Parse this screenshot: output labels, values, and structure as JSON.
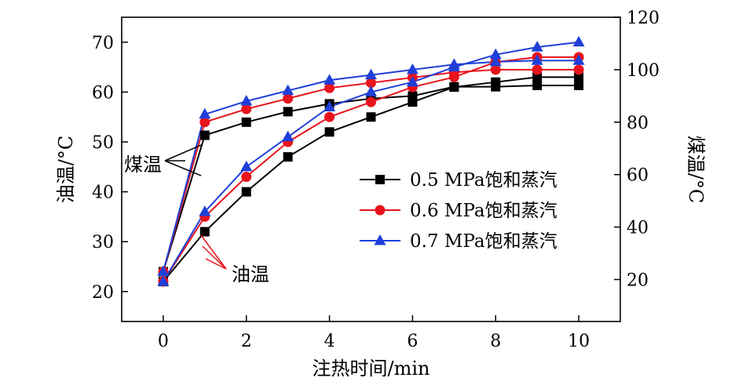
{
  "chart_data": {
    "type": "line",
    "xlabel": "注热时间/min",
    "ylabel_left": "油温/°C",
    "ylabel_right": "煤温/°C",
    "xlim": [
      -1,
      11
    ],
    "ylim_left": [
      14,
      75
    ],
    "ylim_right": [
      4,
      120
    ],
    "x_ticks": [
      0,
      2,
      4,
      6,
      8,
      10
    ],
    "y_left_ticks": [
      20,
      30,
      40,
      50,
      60,
      70
    ],
    "y_right_ticks": [
      20,
      40,
      60,
      80,
      100,
      120
    ],
    "legend_position": "right",
    "x": [
      0,
      1,
      2,
      3,
      4,
      5,
      6,
      7,
      8,
      9,
      10
    ],
    "series": [
      {
        "name": "0.5 MPa饱和蒸汽",
        "color": "#000000",
        "marker": "square",
        "oil_temp": [
          22,
          32,
          40,
          47,
          52,
          55,
          58,
          61,
          62,
          63,
          63
        ],
        "coal_temp": [
          23,
          75,
          80,
          84,
          87,
          89,
          90,
          93.5,
          93.5,
          94,
          94
        ]
      },
      {
        "name": "0.6 MPa饱和蒸汽",
        "color": "#e8141c",
        "marker": "circle",
        "oil_temp": [
          22,
          35,
          43,
          50,
          55,
          58,
          61,
          63,
          66,
          67,
          67
        ],
        "coal_temp": [
          23,
          80,
          85,
          89,
          93,
          95,
          97,
          99,
          100,
          100,
          100
        ]
      },
      {
        "name": "0.7 MPa饱和蒸汽",
        "color": "#1f3fd8",
        "marker": "triangle",
        "oil_temp": [
          22,
          36,
          45,
          51,
          57,
          60,
          62,
          65,
          67.5,
          69,
          70
        ],
        "coal_temp": [
          23,
          83,
          88,
          92,
          96,
          98,
          100,
          102,
          103,
          103.5,
          103.5
        ]
      }
    ],
    "annotations": [
      {
        "text": "煤温",
        "points_to": "coal_temp"
      },
      {
        "text": "油温",
        "points_to": "oil_temp"
      }
    ]
  }
}
